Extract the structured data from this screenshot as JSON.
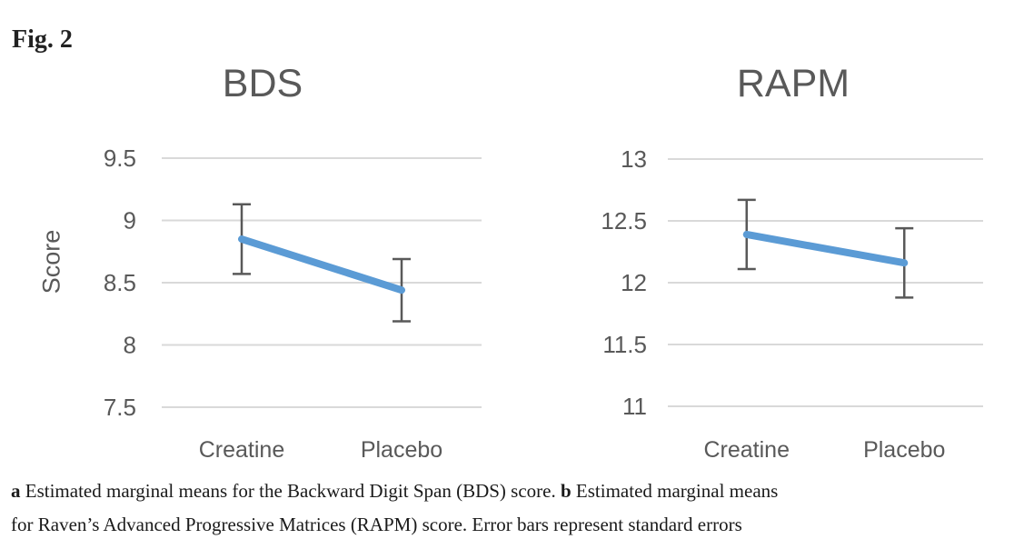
{
  "figure": {
    "label": "Fig. 2"
  },
  "colors": {
    "line": "#5b9bd5",
    "error_bar": "#595959",
    "gridline": "#d9d9d9",
    "axis_text": "#595959",
    "title_text": "#595959"
  },
  "chart_data": [
    {
      "type": "line",
      "title": "BDS",
      "xlabel": "",
      "ylabel": "Score",
      "categories": [
        "Creatine",
        "Placebo"
      ],
      "series": [
        {
          "name": "Estimated marginal mean",
          "values": [
            8.85,
            8.44
          ],
          "errors": [
            0.28,
            0.25
          ]
        }
      ],
      "ylim": [
        7.5,
        9.5
      ],
      "ytick_step": 0.5,
      "ytick_labels": [
        "9.5",
        "9",
        "8.5",
        "8",
        "7.5"
      ],
      "grid": true,
      "legend": "none"
    },
    {
      "type": "line",
      "title": "RAPM",
      "xlabel": "",
      "ylabel": "",
      "categories": [
        "Creatine",
        "Placebo"
      ],
      "series": [
        {
          "name": "Estimated marginal mean",
          "values": [
            12.39,
            12.16
          ],
          "errors": [
            0.28,
            0.28
          ]
        }
      ],
      "ylim": [
        11,
        13
      ],
      "ytick_step": 0.5,
      "ytick_labels": [
        "13",
        "12.5",
        "12",
        "11.5",
        "11"
      ],
      "grid": true,
      "legend": "none"
    }
  ],
  "caption": {
    "marker_a": "a",
    "line1_after_a": " Estimated marginal means for the Backward Digit Span (BDS) score. ",
    "marker_b": "b",
    "line1_after_b": " Estimated marginal means",
    "line2": "for Raven’s Advanced Progressive Matrices (RAPM) score. Error bars represent standard errors"
  }
}
